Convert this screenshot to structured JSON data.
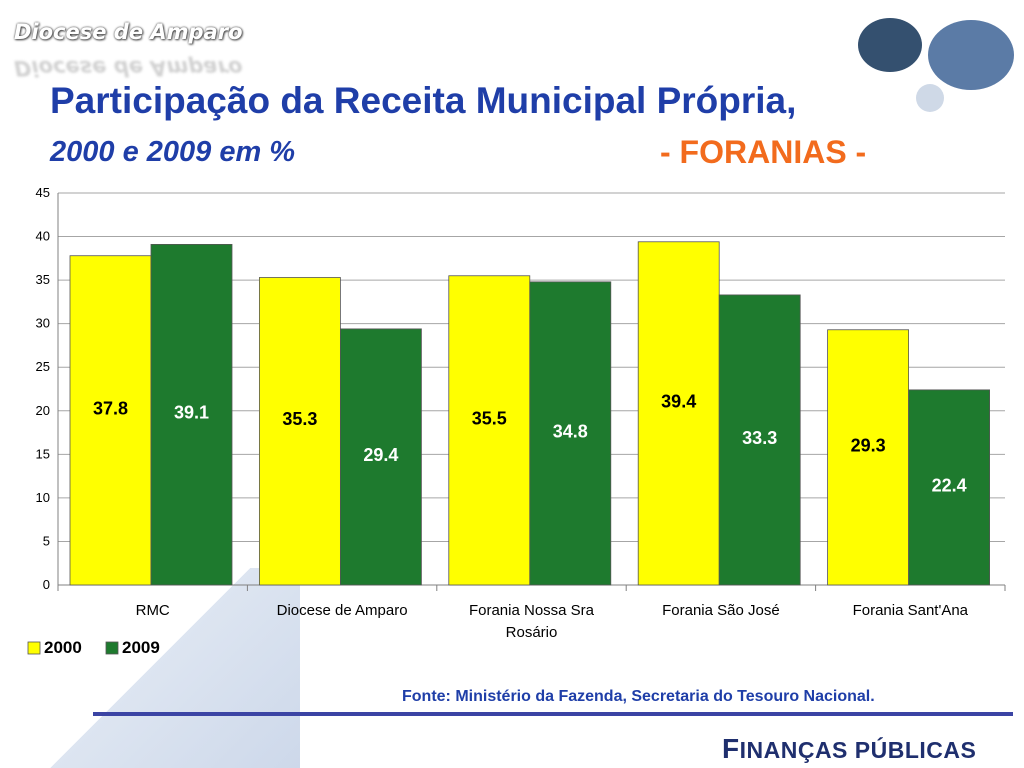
{
  "header": {
    "brand": "Diocese de Amparo",
    "title_line1": "Participação da Receita Municipal Própria,",
    "title_line2": "2000 e 2009 em %",
    "title_highlight": "- FORANIAS -"
  },
  "chart_data": {
    "type": "bar",
    "categories": [
      "RMC",
      "Diocese de Amparo",
      "Forania Nossa Sra Rosário",
      "Forania São José",
      "Forania Sant'Ana"
    ],
    "category_lines": [
      [
        "RMC"
      ],
      [
        "Diocese de Amparo"
      ],
      [
        "Forania Nossa Sra",
        "Rosário"
      ],
      [
        "Forania São José"
      ],
      [
        "Forania Sant'Ana"
      ]
    ],
    "series": [
      {
        "name": "2000",
        "values": [
          37.8,
          35.3,
          35.5,
          39.4,
          29.3
        ],
        "color": "#ffff00",
        "label_color": "#000000"
      },
      {
        "name": "2009",
        "values": [
          39.1,
          29.4,
          34.8,
          33.3,
          22.4
        ],
        "color": "#1e7a2e",
        "label_color": "#ffffff"
      }
    ],
    "ylim": [
      0,
      45
    ],
    "yticks": [
      0,
      5,
      10,
      15,
      20,
      25,
      30,
      35,
      40,
      45
    ],
    "grid": true,
    "legend": "bottom-left"
  },
  "footer": {
    "source": "Fonte: Ministério da Fazenda, Secretaria do Tesouro Nacional.",
    "section_initial": "F",
    "section_rest": "INANÇAS PÚBLICAS"
  }
}
